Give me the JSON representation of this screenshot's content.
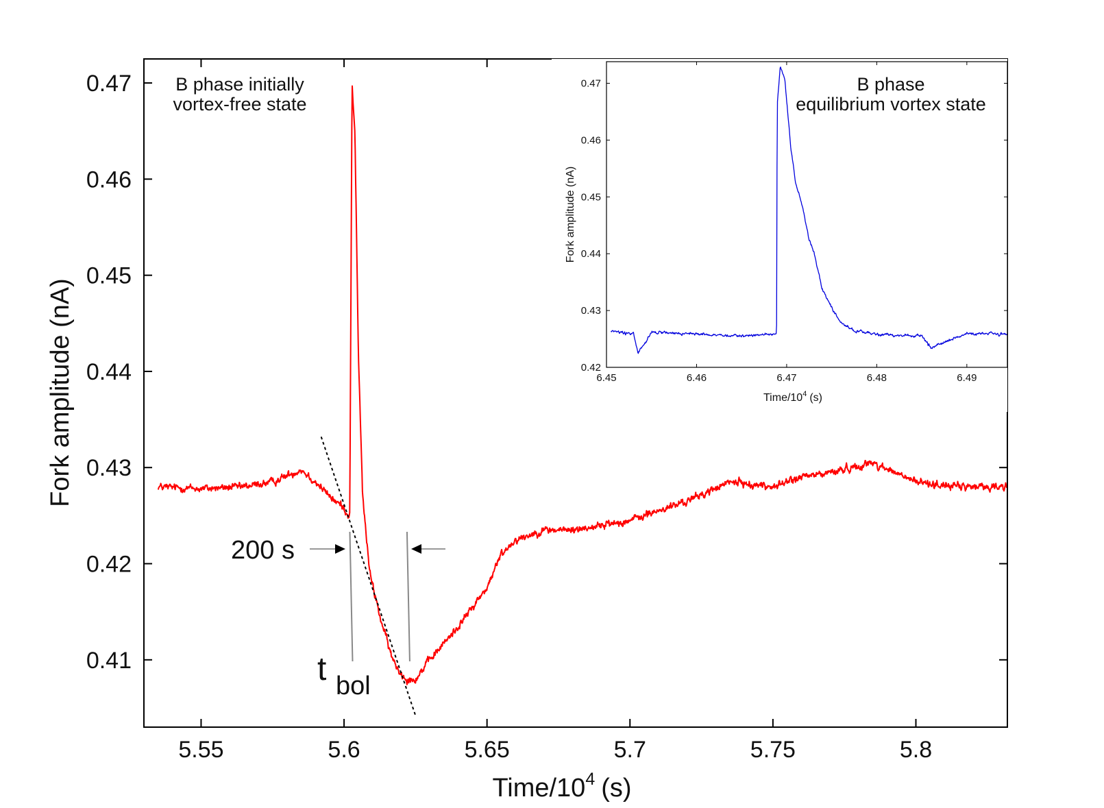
{
  "chart_data": [
    {
      "id": "main",
      "type": "line",
      "title": "",
      "xlabel_text": "Time/10",
      "xlabel_exp": "4",
      "xlabel_unit": "(s)",
      "ylabel": "Fork amplitude  (nA)",
      "xlim": [
        5.53,
        5.832
      ],
      "ylim": [
        0.403,
        0.4725
      ],
      "xticks": [
        5.55,
        5.6,
        5.65,
        5.7,
        5.75,
        5.8
      ],
      "xtick_labels": [
        "5.55",
        "5.6",
        "5.65",
        "5.7",
        "5.75",
        "5.8"
      ],
      "yticks": [
        0.41,
        0.42,
        0.43,
        0.44,
        0.45,
        0.46,
        0.47
      ],
      "ytick_labels": [
        "0.41",
        "0.42",
        "0.43",
        "0.44",
        "0.45",
        "0.46",
        "0.47"
      ],
      "grid": false,
      "series": [
        {
          "name": "B phase initially vortex-free state",
          "color": "#ff0000",
          "noise_amplitude": 0.0011,
          "x": [
            5.535,
            5.55,
            5.565,
            5.575,
            5.585,
            5.59,
            5.595,
            5.6,
            5.6015,
            5.602,
            5.6028,
            5.6038,
            5.605,
            5.6065,
            5.609,
            5.613,
            5.617,
            5.62,
            5.622,
            5.625,
            5.63,
            5.64,
            5.65,
            5.655,
            5.66,
            5.67,
            5.68,
            5.7,
            5.72,
            5.735,
            5.75,
            5.76,
            5.77,
            5.785,
            5.8,
            5.815,
            5.832
          ],
          "y": [
            0.428,
            0.4278,
            0.428,
            0.4285,
            0.4298,
            0.4285,
            0.427,
            0.4258,
            0.425,
            0.4252,
            0.4698,
            0.465,
            0.442,
            0.427,
            0.419,
            0.414,
            0.41,
            0.4085,
            0.408,
            0.408,
            0.41,
            0.4135,
            0.4175,
            0.421,
            0.4225,
            0.4235,
            0.4235,
            0.4245,
            0.4265,
            0.4285,
            0.428,
            0.429,
            0.4295,
            0.4305,
            0.4285,
            0.428,
            0.428
          ]
        }
      ],
      "annotations": {
        "panel_text": [
          "B phase initially",
          "vortex-free state"
        ],
        "interval_label": "200 s",
        "tbol_main": "t",
        "tbol_sub": "bol",
        "marker_color": "#888888",
        "marker_line_1_x": 5.6025,
        "marker_line_2_x": 5.6225,
        "tangent_start": [
          5.592,
          0.4332
        ],
        "tangent_end": [
          5.625,
          0.4042
        ]
      }
    },
    {
      "id": "inset",
      "type": "line",
      "title": "",
      "xlabel_text": "Time/10",
      "xlabel_exp": "4",
      "xlabel_unit": "(s)",
      "ylabel": "Fork amplitude  (nA)",
      "xlim": [
        6.45,
        6.4945
      ],
      "ylim": [
        0.42,
        0.4738
      ],
      "xticks": [
        6.45,
        6.46,
        6.47,
        6.48,
        6.49
      ],
      "xtick_labels": [
        "6.45",
        "6.46",
        "6.47",
        "6.48",
        "6.49"
      ],
      "yticks": [
        0.42,
        0.43,
        0.44,
        0.45,
        0.46,
        0.47
      ],
      "ytick_labels": [
        "0.42",
        "0.43",
        "0.44",
        "0.45",
        "0.46",
        "0.47"
      ],
      "grid": false,
      "series": [
        {
          "name": "B phase equilibrium vortex state",
          "color": "#0000dd",
          "noise_amplitude": 0.0007,
          "x": [
            6.4505,
            6.453,
            6.4535,
            6.455,
            6.46,
            6.465,
            6.4685,
            6.46888,
            6.46895,
            6.4693,
            6.4698,
            6.4705,
            6.471,
            6.4718,
            6.4725,
            6.473,
            6.4735,
            6.474,
            6.475,
            6.476,
            6.4775,
            6.48,
            6.485,
            6.486,
            6.49,
            6.4945
          ],
          "y": [
            0.4265,
            0.4258,
            0.4225,
            0.4262,
            0.4258,
            0.4255,
            0.4258,
            0.426,
            0.466,
            0.473,
            0.4705,
            0.458,
            0.4525,
            0.448,
            0.4425,
            0.4405,
            0.437,
            0.4335,
            0.4305,
            0.4278,
            0.4265,
            0.4258,
            0.4255,
            0.4235,
            0.426,
            0.4258
          ]
        }
      ],
      "annotations": {
        "panel_text": [
          "B phase",
          "equilibrium vortex state"
        ]
      }
    }
  ]
}
